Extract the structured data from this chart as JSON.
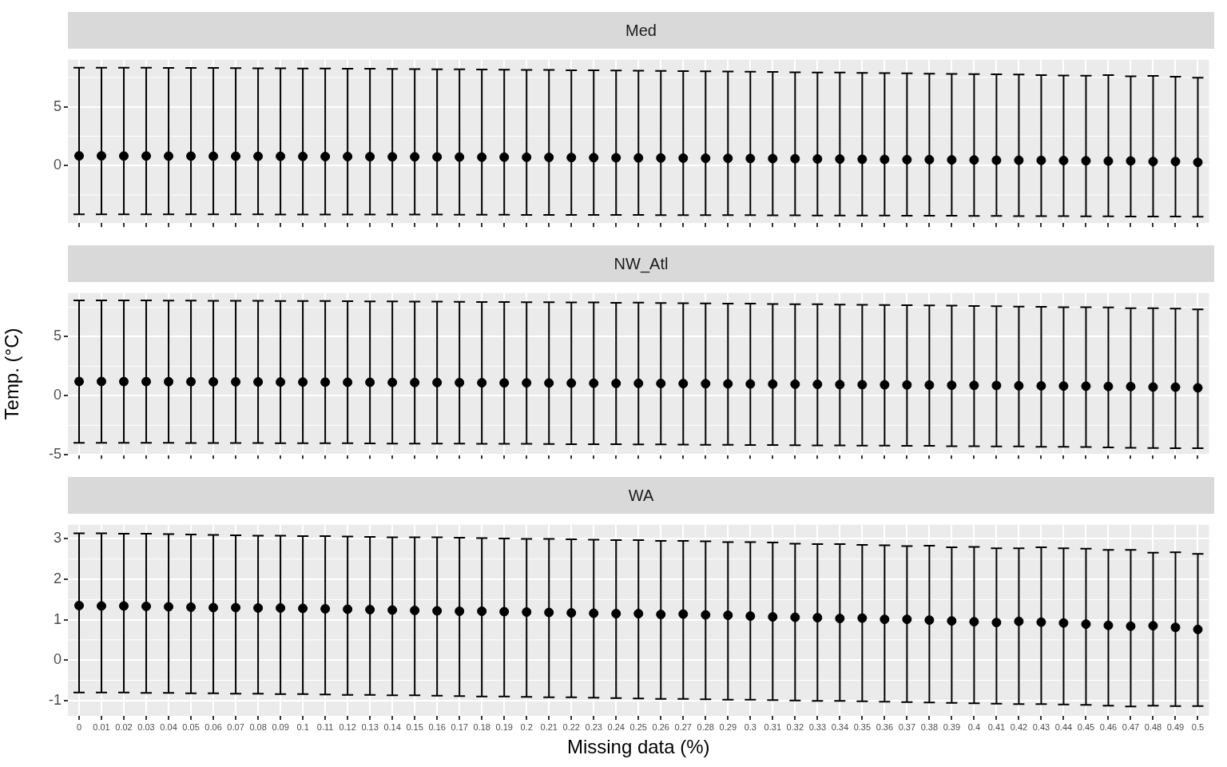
{
  "chart_data": [
    {
      "type": "scatter",
      "title": "Med",
      "categories": [
        "0",
        "0.01",
        "0.02",
        "0.03",
        "0.04",
        "0.05",
        "0.06",
        "0.07",
        "0.08",
        "0.09",
        "0.1",
        "0.11",
        "0.12",
        "0.13",
        "0.14",
        "0.15",
        "0.16",
        "0.17",
        "0.18",
        "0.19",
        "0.2",
        "0.21",
        "0.22",
        "0.23",
        "0.24",
        "0.25",
        "0.26",
        "0.27",
        "0.28",
        "0.29",
        "0.3",
        "0.31",
        "0.32",
        "0.33",
        "0.34",
        "0.35",
        "0.36",
        "0.37",
        "0.38",
        "0.39",
        "0.4",
        "0.41",
        "0.42",
        "0.43",
        "0.44",
        "0.45",
        "0.46",
        "0.47",
        "0.48",
        "0.49",
        "0.5"
      ],
      "values": [
        0.82,
        0.82,
        0.81,
        0.81,
        0.8,
        0.8,
        0.79,
        0.79,
        0.78,
        0.78,
        0.77,
        0.76,
        0.76,
        0.75,
        0.74,
        0.74,
        0.73,
        0.72,
        0.71,
        0.71,
        0.7,
        0.69,
        0.68,
        0.67,
        0.66,
        0.65,
        0.64,
        0.63,
        0.62,
        0.61,
        0.6,
        0.59,
        0.58,
        0.56,
        0.55,
        0.53,
        0.52,
        0.5,
        0.5,
        0.48,
        0.47,
        0.45,
        0.45,
        0.44,
        0.42,
        0.4,
        0.38,
        0.39,
        0.34,
        0.34,
        0.27
      ],
      "errors": [
        [
          -4.15,
          8.33
        ],
        [
          -4.15,
          8.33
        ],
        [
          -4.15,
          8.32
        ],
        [
          -4.15,
          8.32
        ],
        [
          -4.15,
          8.31
        ],
        [
          -4.16,
          8.3
        ],
        [
          -4.16,
          8.3
        ],
        [
          -4.16,
          8.29
        ],
        [
          -4.16,
          8.28
        ],
        [
          -4.17,
          8.27
        ],
        [
          -4.17,
          8.26
        ],
        [
          -4.17,
          8.25
        ],
        [
          -4.17,
          8.24
        ],
        [
          -4.18,
          8.23
        ],
        [
          -4.18,
          8.22
        ],
        [
          -4.18,
          8.21
        ],
        [
          -4.18,
          8.19
        ],
        [
          -4.19,
          8.18
        ],
        [
          -4.19,
          8.17
        ],
        [
          -4.19,
          8.15
        ],
        [
          -4.2,
          8.14
        ],
        [
          -4.2,
          8.13
        ],
        [
          -4.2,
          8.11
        ],
        [
          -4.21,
          8.1
        ],
        [
          -4.21,
          8.08
        ],
        [
          -4.21,
          8.07
        ],
        [
          -4.22,
          8.05
        ],
        [
          -4.22,
          8.04
        ],
        [
          -4.22,
          8.02
        ],
        [
          -4.23,
          8.0
        ],
        [
          -4.23,
          7.98
        ],
        [
          -4.24,
          7.96
        ],
        [
          -4.24,
          7.94
        ],
        [
          -4.25,
          7.92
        ],
        [
          -4.25,
          7.91
        ],
        [
          -4.26,
          7.88
        ],
        [
          -4.26,
          7.86
        ],
        [
          -4.27,
          7.84
        ],
        [
          -4.27,
          7.82
        ],
        [
          -4.28,
          7.8
        ],
        [
          -4.29,
          7.78
        ],
        [
          -4.29,
          7.76
        ],
        [
          -4.3,
          7.74
        ],
        [
          -4.3,
          7.7
        ],
        [
          -4.31,
          7.66
        ],
        [
          -4.32,
          7.65
        ],
        [
          -4.33,
          7.69
        ],
        [
          -4.34,
          7.6
        ],
        [
          -4.34,
          7.62
        ],
        [
          -4.35,
          7.55
        ],
        [
          -4.36,
          7.47
        ]
      ],
      "color": "#000000",
      "marker": "circle",
      "ylim": [
        -4.9,
        9.0
      ],
      "yticks": [
        0,
        5
      ],
      "grid": true,
      "tick_labels": "y"
    },
    {
      "type": "scatter",
      "title": "NW_Atl",
      "ylabel": "Temp. (°C)",
      "categories": [
        "0",
        "0.01",
        "0.02",
        "0.03",
        "0.04",
        "0.05",
        "0.06",
        "0.07",
        "0.08",
        "0.09",
        "0.1",
        "0.11",
        "0.12",
        "0.13",
        "0.14",
        "0.15",
        "0.16",
        "0.17",
        "0.18",
        "0.19",
        "0.2",
        "0.21",
        "0.22",
        "0.23",
        "0.24",
        "0.25",
        "0.26",
        "0.27",
        "0.28",
        "0.29",
        "0.3",
        "0.31",
        "0.32",
        "0.33",
        "0.34",
        "0.35",
        "0.36",
        "0.37",
        "0.38",
        "0.39",
        "0.4",
        "0.41",
        "0.42",
        "0.43",
        "0.44",
        "0.45",
        "0.46",
        "0.47",
        "0.48",
        "0.49",
        "0.5"
      ],
      "values": [
        1.21,
        1.21,
        1.2,
        1.2,
        1.19,
        1.19,
        1.18,
        1.18,
        1.17,
        1.16,
        1.16,
        1.15,
        1.14,
        1.14,
        1.13,
        1.12,
        1.12,
        1.11,
        1.1,
        1.09,
        1.09,
        1.08,
        1.07,
        1.06,
        1.05,
        1.05,
        1.04,
        1.03,
        1.02,
        1.01,
        1.0,
        0.99,
        0.98,
        0.97,
        0.95,
        0.94,
        0.93,
        0.92,
        0.91,
        0.89,
        0.88,
        0.87,
        0.85,
        0.84,
        0.82,
        0.81,
        0.79,
        0.78,
        0.74,
        0.73,
        0.67
      ],
      "errors": [
        [
          -3.98,
          8.08
        ],
        [
          -3.98,
          8.08
        ],
        [
          -3.99,
          8.07
        ],
        [
          -3.99,
          8.07
        ],
        [
          -3.99,
          8.06
        ],
        [
          -4.0,
          8.06
        ],
        [
          -4.0,
          8.05
        ],
        [
          -4.01,
          8.05
        ],
        [
          -4.01,
          8.04
        ],
        [
          -4.02,
          8.03
        ],
        [
          -4.02,
          8.02
        ],
        [
          -4.03,
          8.02
        ],
        [
          -4.03,
          8.01
        ],
        [
          -4.04,
          8.0
        ],
        [
          -4.05,
          7.99
        ],
        [
          -4.05,
          7.98
        ],
        [
          -4.06,
          7.97
        ],
        [
          -4.06,
          7.96
        ],
        [
          -4.07,
          7.95
        ],
        [
          -4.08,
          7.94
        ],
        [
          -4.08,
          7.93
        ],
        [
          -4.09,
          7.92
        ],
        [
          -4.1,
          7.91
        ],
        [
          -4.11,
          7.9
        ],
        [
          -4.11,
          7.88
        ],
        [
          -4.12,
          7.89
        ],
        [
          -4.13,
          7.85
        ],
        [
          -4.14,
          7.84
        ],
        [
          -4.15,
          7.83
        ],
        [
          -4.16,
          7.81
        ],
        [
          -4.17,
          7.8
        ],
        [
          -4.18,
          7.78
        ],
        [
          -4.19,
          7.76
        ],
        [
          -4.2,
          7.75
        ],
        [
          -4.21,
          7.73
        ],
        [
          -4.22,
          7.71
        ],
        [
          -4.23,
          7.69
        ],
        [
          -4.24,
          7.67
        ],
        [
          -4.25,
          7.65
        ],
        [
          -4.27,
          7.63
        ],
        [
          -4.28,
          7.6
        ],
        [
          -4.29,
          7.58
        ],
        [
          -4.3,
          7.55
        ],
        [
          -4.32,
          7.53
        ],
        [
          -4.33,
          7.5
        ],
        [
          -4.35,
          7.5
        ],
        [
          -4.37,
          7.48
        ],
        [
          -4.41,
          7.41
        ],
        [
          -4.42,
          7.41
        ],
        [
          -4.44,
          7.38
        ],
        [
          -4.44,
          7.31
        ]
      ],
      "color": "#000000",
      "marker": "circle",
      "ylim": [
        -5.0,
        8.7
      ],
      "yticks": [
        -5,
        0,
        5
      ],
      "grid": true,
      "tick_labels": "y"
    },
    {
      "type": "scatter",
      "title": "WA",
      "xlabel": "Missing data (%)",
      "categories": [
        "0",
        "0.01",
        "0.02",
        "0.03",
        "0.04",
        "0.05",
        "0.06",
        "0.07",
        "0.08",
        "0.09",
        "0.1",
        "0.11",
        "0.12",
        "0.13",
        "0.14",
        "0.15",
        "0.16",
        "0.17",
        "0.18",
        "0.19",
        "0.2",
        "0.21",
        "0.22",
        "0.23",
        "0.24",
        "0.25",
        "0.26",
        "0.27",
        "0.28",
        "0.29",
        "0.3",
        "0.31",
        "0.32",
        "0.33",
        "0.34",
        "0.35",
        "0.36",
        "0.37",
        "0.38",
        "0.39",
        "0.4",
        "0.41",
        "0.42",
        "0.43",
        "0.44",
        "0.45",
        "0.46",
        "0.47",
        "0.48",
        "0.49",
        "0.5"
      ],
      "values": [
        1.35,
        1.34,
        1.34,
        1.33,
        1.32,
        1.31,
        1.3,
        1.3,
        1.29,
        1.29,
        1.28,
        1.27,
        1.26,
        1.25,
        1.24,
        1.23,
        1.22,
        1.21,
        1.21,
        1.2,
        1.19,
        1.18,
        1.17,
        1.16,
        1.15,
        1.15,
        1.13,
        1.14,
        1.12,
        1.11,
        1.09,
        1.07,
        1.06,
        1.05,
        1.03,
        1.04,
        1.01,
        1.01,
        0.99,
        0.97,
        0.95,
        0.93,
        0.96,
        0.94,
        0.92,
        0.89,
        0.86,
        0.84,
        0.85,
        0.81,
        0.76
      ],
      "errors": [
        [
          -0.8,
          3.14
        ],
        [
          -0.8,
          3.14
        ],
        [
          -0.8,
          3.13
        ],
        [
          -0.81,
          3.13
        ],
        [
          -0.81,
          3.12
        ],
        [
          -0.82,
          3.11
        ],
        [
          -0.82,
          3.1
        ],
        [
          -0.83,
          3.09
        ],
        [
          -0.83,
          3.08
        ],
        [
          -0.84,
          3.08
        ],
        [
          -0.84,
          3.07
        ],
        [
          -0.85,
          3.07
        ],
        [
          -0.86,
          3.06
        ],
        [
          -0.86,
          3.05
        ],
        [
          -0.87,
          3.04
        ],
        [
          -0.87,
          3.04
        ],
        [
          -0.88,
          3.04
        ],
        [
          -0.89,
          3.03
        ],
        [
          -0.9,
          3.02
        ],
        [
          -0.9,
          3.01
        ],
        [
          -0.91,
          3.0
        ],
        [
          -0.92,
          3.0
        ],
        [
          -0.92,
          2.99
        ],
        [
          -0.93,
          2.98
        ],
        [
          -0.94,
          2.97
        ],
        [
          -0.95,
          2.97
        ],
        [
          -0.96,
          2.95
        ],
        [
          -0.96,
          2.95
        ],
        [
          -0.97,
          2.94
        ],
        [
          -0.98,
          2.92
        ],
        [
          -0.98,
          2.92
        ],
        [
          -0.99,
          2.91
        ],
        [
          -1.0,
          2.88
        ],
        [
          -1.01,
          2.87
        ],
        [
          -1.01,
          2.87
        ],
        [
          -1.02,
          2.85
        ],
        [
          -1.03,
          2.84
        ],
        [
          -1.04,
          2.82
        ],
        [
          -1.05,
          2.83
        ],
        [
          -1.06,
          2.79
        ],
        [
          -1.07,
          2.8
        ],
        [
          -1.08,
          2.77
        ],
        [
          -1.09,
          2.77
        ],
        [
          -1.09,
          2.79
        ],
        [
          -1.1,
          2.77
        ],
        [
          -1.11,
          2.76
        ],
        [
          -1.13,
          2.73
        ],
        [
          -1.15,
          2.73
        ],
        [
          -1.13,
          2.66
        ],
        [
          -1.14,
          2.67
        ],
        [
          -1.14,
          2.63
        ]
      ],
      "color": "#000000",
      "marker": "circle",
      "ylim": [
        -1.38,
        3.35
      ],
      "yticks": [
        -1,
        0,
        1,
        2,
        3
      ],
      "grid": true
    }
  ]
}
